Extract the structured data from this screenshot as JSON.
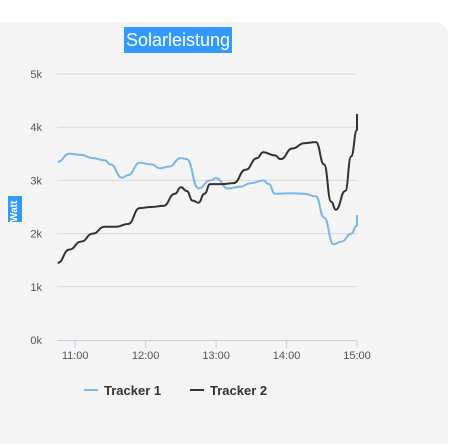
{
  "chart_data": {
    "type": "line",
    "title": "Solarleistung",
    "ylabel": "Watt",
    "xlabel": "",
    "ylim": [
      0,
      5000
    ],
    "y_ticks": [
      {
        "value": 0,
        "label": "0k"
      },
      {
        "value": 1000,
        "label": "1k"
      },
      {
        "value": 2000,
        "label": "2k"
      },
      {
        "value": 3000,
        "label": "3k"
      },
      {
        "value": 4000,
        "label": "4k"
      },
      {
        "value": 5000,
        "label": "5k"
      }
    ],
    "xlim": [
      "10:45",
      "15:00"
    ],
    "x_ticks": [
      "11:00",
      "12:00",
      "13:00",
      "14:00",
      "15:00"
    ],
    "grid": true,
    "legend_position": "bottom-left",
    "series": [
      {
        "name": "Tracker 1",
        "color": "#7cb5ec",
        "points": [
          [
            "10:45",
            3350
          ],
          [
            "10:55",
            3500
          ],
          [
            "11:05",
            3480
          ],
          [
            "11:15",
            3420
          ],
          [
            "11:25",
            3380
          ],
          [
            "11:30",
            3300
          ],
          [
            "11:40",
            3050
          ],
          [
            "11:45",
            3100
          ],
          [
            "11:55",
            3330
          ],
          [
            "12:05",
            3300
          ],
          [
            "12:12",
            3230
          ],
          [
            "12:20",
            3260
          ],
          [
            "12:30",
            3420
          ],
          [
            "12:35",
            3400
          ],
          [
            "12:45",
            2850
          ],
          [
            "12:55",
            3000
          ],
          [
            "13:00",
            3040
          ],
          [
            "13:10",
            2850
          ],
          [
            "13:20",
            2880
          ],
          [
            "13:30",
            2950
          ],
          [
            "13:40",
            3000
          ],
          [
            "13:45",
            2930
          ],
          [
            "13:50",
            2750
          ],
          [
            "14:05",
            2760
          ],
          [
            "14:15",
            2750
          ],
          [
            "14:25",
            2700
          ],
          [
            "14:32",
            2300
          ],
          [
            "14:40",
            1800
          ],
          [
            "14:47",
            1850
          ],
          [
            "14:55",
            2000
          ],
          [
            "15:00",
            2150
          ],
          [
            "15:00",
            2350
          ]
        ]
      },
      {
        "name": "Tracker 2",
        "color": "#333333",
        "points": [
          [
            "10:45",
            1450
          ],
          [
            "10:55",
            1700
          ],
          [
            "11:05",
            1850
          ],
          [
            "11:15",
            2000
          ],
          [
            "11:25",
            2130
          ],
          [
            "11:35",
            2130
          ],
          [
            "11:45",
            2180
          ],
          [
            "11:55",
            2480
          ],
          [
            "12:05",
            2500
          ],
          [
            "12:15",
            2520
          ],
          [
            "12:25",
            2750
          ],
          [
            "12:30",
            2870
          ],
          [
            "12:35",
            2800
          ],
          [
            "12:40",
            2620
          ],
          [
            "12:45",
            2580
          ],
          [
            "12:50",
            2750
          ],
          [
            "12:55",
            2930
          ],
          [
            "13:05",
            2930
          ],
          [
            "13:15",
            2950
          ],
          [
            "13:25",
            3200
          ],
          [
            "13:35",
            3420
          ],
          [
            "13:40",
            3530
          ],
          [
            "13:50",
            3470
          ],
          [
            "13:55",
            3400
          ],
          [
            "14:05",
            3600
          ],
          [
            "14:15",
            3700
          ],
          [
            "14:25",
            3720
          ],
          [
            "14:32",
            3300
          ],
          [
            "14:38",
            2600
          ],
          [
            "14:42",
            2450
          ],
          [
            "14:50",
            2800
          ],
          [
            "14:55",
            3450
          ],
          [
            "15:00",
            3950
          ],
          [
            "15:00",
            4250
          ]
        ]
      }
    ]
  }
}
